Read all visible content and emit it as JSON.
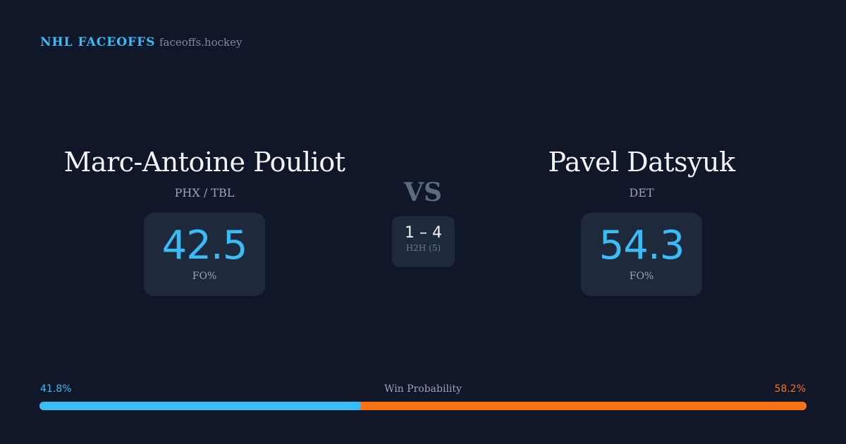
{
  "header": {
    "brand": "NHL FACEOFFS",
    "site": "faceoffs.hockey"
  },
  "player1": {
    "name": "Marc-Antoine Pouliot",
    "team": "PHX / TBL",
    "fo_pct": "42.5",
    "fo_label": "FO%"
  },
  "player2": {
    "name": "Pavel Datsyuk",
    "team": "DET",
    "fo_pct": "54.3",
    "fo_label": "FO%"
  },
  "versus": {
    "label": "VS",
    "h2h_score": "1 – 4",
    "h2h_label": "H2H (5)"
  },
  "win_probability": {
    "label": "Win Probability",
    "player1_pct": "41.8%",
    "player2_pct": "58.2%",
    "player1_value": 41.8,
    "player2_value": 58.2,
    "colors": {
      "player1": "#38bdf8",
      "player2": "#f97316"
    }
  }
}
